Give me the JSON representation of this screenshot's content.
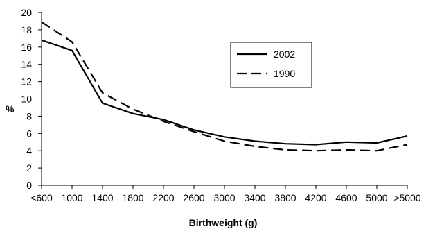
{
  "chart_data": {
    "type": "line",
    "title": "",
    "xlabel": "Birthweight (g)",
    "ylabel": "%",
    "categories": [
      "<600",
      "1000",
      "1400",
      "1800",
      "2200",
      "2600",
      "3000",
      "3400",
      "3800",
      "4200",
      "4600",
      "5000",
      ">5000"
    ],
    "ylim": [
      0,
      20
    ],
    "yticks": [
      "0",
      "2",
      "4",
      "6",
      "8",
      "10",
      "12",
      "14",
      "16",
      "18",
      "20"
    ],
    "grid": false,
    "legend_position": "top-right",
    "series": [
      {
        "name": "2002",
        "style": "solid",
        "color": "#000000",
        "values": [
          16.8,
          15.6,
          9.5,
          8.3,
          7.6,
          6.4,
          5.6,
          5.1,
          4.8,
          4.7,
          5.0,
          4.9,
          5.7
        ]
      },
      {
        "name": "1990",
        "style": "dashed",
        "color": "#000000",
        "values": [
          18.9,
          16.6,
          10.7,
          8.8,
          7.4,
          6.2,
          5.1,
          4.5,
          4.1,
          4.0,
          4.1,
          4.0,
          4.7
        ]
      }
    ]
  }
}
